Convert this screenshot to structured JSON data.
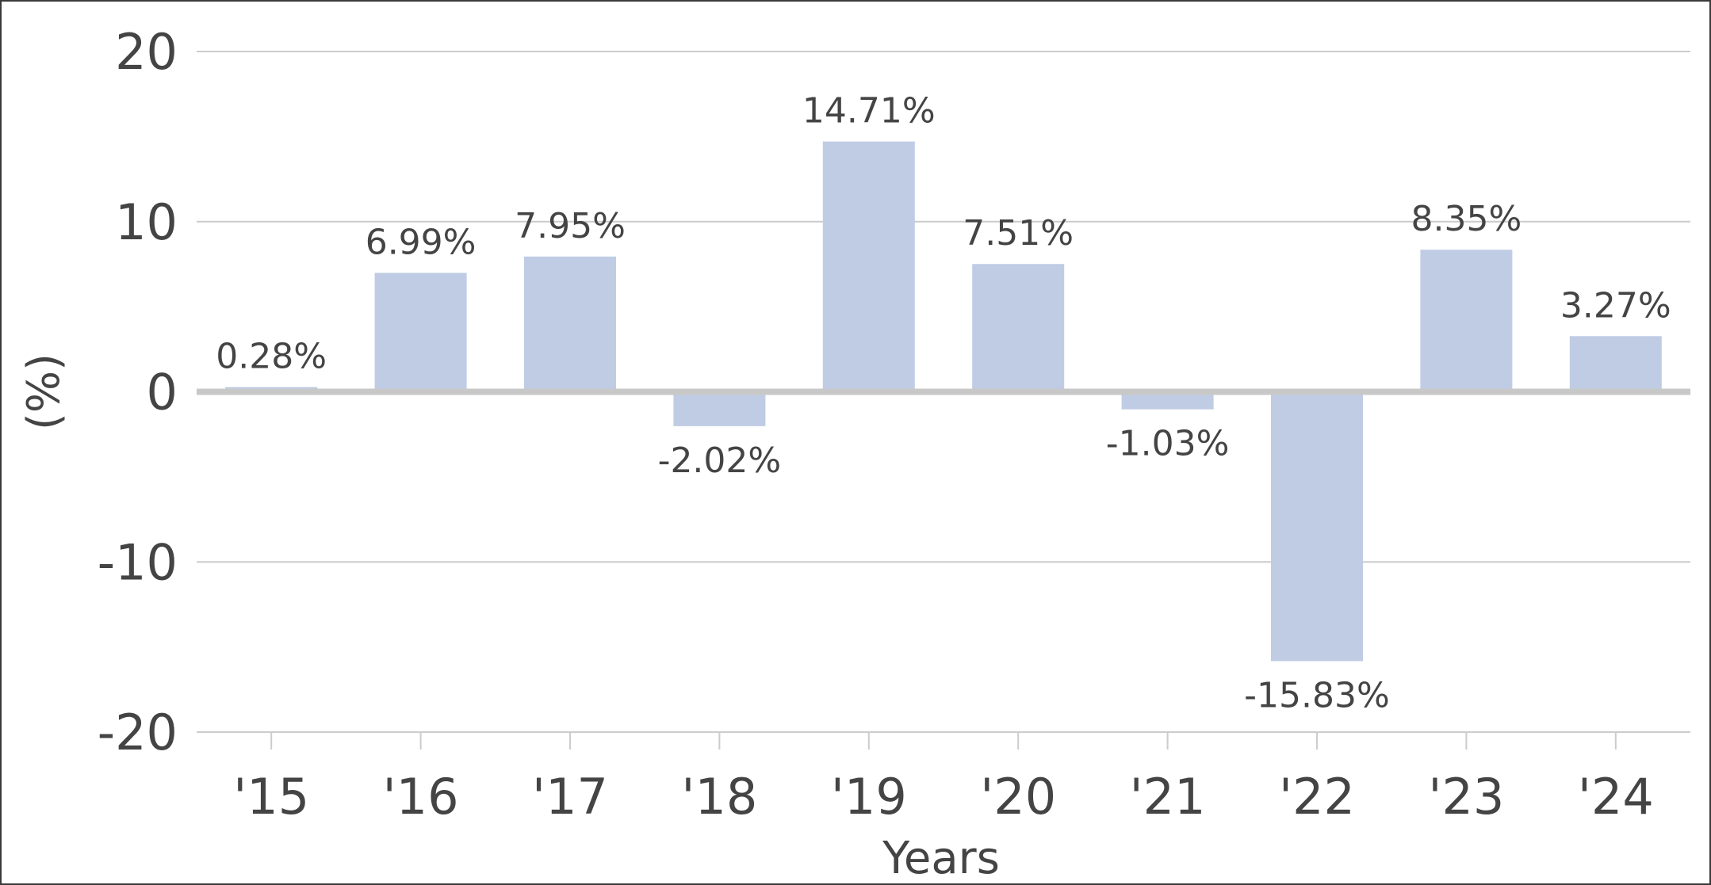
{
  "chart_data": {
    "type": "bar",
    "categories": [
      "'15",
      "'16",
      "'17",
      "'18",
      "'19",
      "'20",
      "'21",
      "'22",
      "'23",
      "'24"
    ],
    "values": [
      0.28,
      6.99,
      7.95,
      -2.02,
      14.71,
      7.51,
      -1.03,
      -15.83,
      8.35,
      3.27
    ],
    "data_labels": [
      "0.28%",
      "6.99%",
      "7.95%",
      "-2.02%",
      "14.71%",
      "7.51%",
      "-1.03%",
      "-15.83%",
      "8.35%",
      "3.27%"
    ],
    "xlabel": "Years",
    "ylabel": "(%)",
    "ylim": [
      -20,
      20
    ],
    "yticks": [
      -20,
      -10,
      0,
      10,
      20
    ],
    "ytick_labels": [
      "-20",
      "-10",
      "0",
      "10",
      "20"
    ],
    "grid": true,
    "colors": {
      "bar": "#bfcce4",
      "grid": "#cccccc",
      "zero_line": "#c8c8c8",
      "text": "#444444"
    }
  }
}
